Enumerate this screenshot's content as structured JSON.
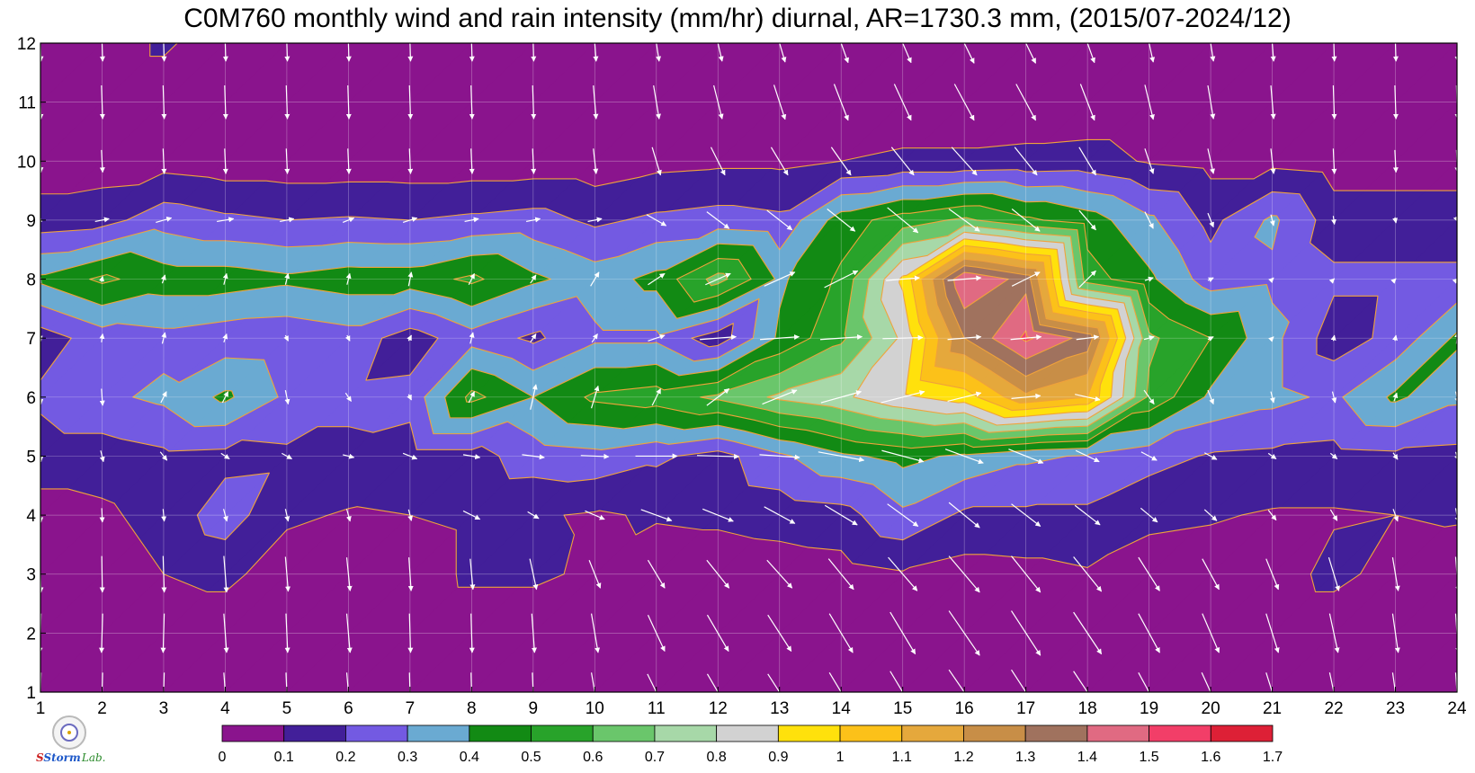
{
  "title": "C0M760 monthly wind and rain intensity (mm/hr) diurnal, AR=1730.3 mm, (2015/07-2024/12)",
  "logo": {
    "line1": "S",
    "line2": "Storm",
    "line3": "Lab."
  },
  "chart_data": {
    "type": "heatmap",
    "description_kind": "filled contour with wind vectors",
    "x": [
      1,
      2,
      3,
      4,
      5,
      6,
      7,
      8,
      9,
      10,
      11,
      12,
      13,
      14,
      15,
      16,
      17,
      18,
      19,
      20,
      21,
      22,
      23,
      24
    ],
    "y": [
      1,
      2,
      3,
      4,
      5,
      6,
      7,
      8,
      9,
      10,
      11,
      12
    ],
    "xlim": [
      1,
      24
    ],
    "ylim": [
      1,
      12
    ],
    "xticks": [
      "1",
      "2",
      "3",
      "4",
      "5",
      "6",
      "7",
      "8",
      "9",
      "10",
      "11",
      "12",
      "13",
      "14",
      "15",
      "16",
      "17",
      "18",
      "19",
      "20",
      "21",
      "22",
      "23",
      "24"
    ],
    "yticks": [
      "1",
      "2",
      "3",
      "4",
      "5",
      "6",
      "7",
      "8",
      "9",
      "10",
      "11",
      "12"
    ],
    "grid": true,
    "z_units": "mm/hr",
    "z": [
      [
        0.03,
        0.03,
        0.03,
        0.03,
        0.03,
        0.03,
        0.03,
        0.03,
        0.03,
        0.04,
        0.08,
        0.03,
        0.03,
        0.03,
        0.03,
        0.03,
        0.03,
        0.03,
        0.03,
        0.03,
        0.03,
        0.03,
        0.03,
        0.03
      ],
      [
        0.03,
        0.03,
        0.03,
        0.03,
        0.03,
        0.03,
        0.03,
        0.03,
        0.03,
        0.03,
        0.03,
        0.03,
        0.03,
        0.03,
        0.03,
        0.03,
        0.03,
        0.03,
        0.03,
        0.03,
        0.03,
        0.03,
        0.03,
        0.03
      ],
      [
        0.04,
        0.04,
        0.1,
        0.13,
        0.04,
        0.04,
        0.04,
        0.12,
        0.12,
        0.08,
        0.04,
        0.04,
        0.05,
        0.06,
        0.09,
        0.06,
        0.07,
        0.09,
        0.06,
        0.05,
        0.05,
        0.13,
        0.06,
        0.05
      ],
      [
        0.06,
        0.08,
        0.14,
        0.25,
        0.12,
        0.09,
        0.1,
        0.12,
        0.11,
        0.09,
        0.11,
        0.12,
        0.14,
        0.16,
        0.28,
        0.18,
        0.18,
        0.18,
        0.12,
        0.11,
        0.09,
        0.09,
        0.1,
        0.11
      ],
      [
        0.15,
        0.15,
        0.18,
        0.17,
        0.18,
        0.18,
        0.16,
        0.16,
        0.25,
        0.27,
        0.22,
        0.16,
        0.28,
        0.38,
        0.43,
        0.38,
        0.32,
        0.29,
        0.24,
        0.19,
        0.18,
        0.17,
        0.18,
        0.17
      ],
      [
        0.22,
        0.28,
        0.32,
        0.42,
        0.28,
        0.22,
        0.23,
        0.53,
        0.4,
        0.52,
        0.55,
        0.62,
        0.72,
        0.78,
        0.88,
        0.95,
        1.18,
        1.1,
        0.58,
        0.38,
        0.33,
        0.28,
        0.42,
        0.32
      ],
      [
        0.15,
        0.25,
        0.27,
        0.24,
        0.23,
        0.26,
        0.15,
        0.26,
        0.18,
        0.28,
        0.28,
        0.14,
        0.42,
        0.58,
        0.82,
        1.3,
        1.52,
        1.36,
        0.62,
        0.5,
        0.33,
        0.15,
        0.23,
        0.42
      ],
      [
        0.42,
        0.52,
        0.45,
        0.45,
        0.42,
        0.45,
        0.45,
        0.52,
        0.42,
        0.35,
        0.43,
        0.64,
        0.38,
        0.52,
        0.92,
        1.5,
        1.36,
        0.55,
        0.42,
        0.25,
        0.28,
        0.22,
        0.22,
        0.22
      ],
      [
        0.14,
        0.16,
        0.26,
        0.22,
        0.2,
        0.21,
        0.2,
        0.22,
        0.24,
        0.18,
        0.22,
        0.24,
        0.22,
        0.45,
        0.55,
        0.62,
        0.52,
        0.45,
        0.32,
        0.17,
        0.32,
        0.15,
        0.15,
        0.15
      ],
      [
        0.05,
        0.05,
        0.06,
        0.04,
        0.04,
        0.04,
        0.04,
        0.04,
        0.04,
        0.04,
        0.07,
        0.08,
        0.08,
        0.1,
        0.12,
        0.12,
        0.13,
        0.14,
        0.09,
        0.07,
        0.07,
        0.05,
        0.05,
        0.05
      ],
      [
        0.03,
        0.03,
        0.03,
        0.03,
        0.03,
        0.03,
        0.03,
        0.03,
        0.03,
        0.03,
        0.03,
        0.03,
        0.03,
        0.03,
        0.03,
        0.03,
        0.03,
        0.03,
        0.03,
        0.03,
        0.03,
        0.03,
        0.03,
        0.03
      ],
      [
        0.03,
        0.03,
        0.12,
        0.03,
        0.03,
        0.03,
        0.03,
        0.03,
        0.03,
        0.03,
        0.03,
        0.03,
        0.03,
        0.03,
        0.03,
        0.03,
        0.03,
        0.03,
        0.03,
        0.03,
        0.03,
        0.03,
        0.03,
        0.03
      ]
    ],
    "wind_u": [
      [
        -0.02,
        -0.02,
        -0.02,
        0.05,
        0.03,
        0.06,
        0.02,
        0.02,
        0.03,
        0.12,
        0.32,
        0.38,
        0.42,
        0.42,
        0.45,
        0.55,
        0.52,
        0.5,
        0.38,
        0.32,
        0.22,
        0.15,
        0.1,
        0.05
      ],
      [
        -0.02,
        -0.02,
        -0.02,
        0.05,
        0.03,
        0.06,
        0.02,
        0.02,
        0.05,
        0.12,
        0.3,
        0.38,
        0.42,
        0.42,
        0.45,
        0.55,
        0.52,
        0.5,
        0.38,
        0.3,
        0.22,
        0.15,
        0.1,
        0.05
      ],
      [
        0.02,
        0.01,
        0.02,
        0.05,
        0.05,
        0.06,
        0.04,
        0.05,
        0.12,
        0.2,
        0.3,
        0.4,
        0.45,
        0.45,
        0.52,
        0.55,
        0.52,
        0.5,
        0.38,
        0.3,
        0.22,
        0.18,
        0.1,
        0.05
      ],
      [
        0.02,
        0.01,
        0.02,
        0.06,
        0.05,
        0.06,
        0.05,
        0.3,
        0.2,
        0.35,
        0.55,
        0.55,
        0.55,
        0.58,
        0.55,
        0.55,
        0.52,
        0.45,
        0.3,
        0.22,
        0.14,
        0.12,
        0.08,
        0.05
      ],
      [
        0.02,
        0.05,
        0.12,
        0.15,
        0.18,
        0.2,
        0.25,
        0.3,
        0.4,
        0.5,
        0.75,
        0.75,
        0.72,
        0.82,
        0.75,
        0.68,
        0.62,
        0.42,
        0.28,
        0.22,
        0.14,
        0.12,
        0.08,
        0.05
      ],
      [
        0.02,
        0.02,
        0.1,
        0.1,
        0.05,
        0.1,
        0.05,
        0.1,
        0.1,
        0.12,
        0.15,
        0.4,
        0.62,
        0.72,
        0.78,
        0.6,
        0.52,
        0.45,
        0.18,
        0.1,
        0.05,
        0.05,
        0.05,
        0.05
      ],
      [
        0.02,
        0.02,
        0.05,
        0.05,
        0.05,
        0.05,
        0.05,
        0.05,
        0.1,
        0.1,
        0.3,
        0.65,
        0.7,
        0.75,
        0.72,
        0.6,
        0.55,
        0.4,
        0.18,
        0.1,
        0.05,
        0.02,
        0.02,
        0.02
      ],
      [
        0.02,
        0.02,
        0.05,
        0.05,
        0.05,
        0.05,
        0.05,
        0.1,
        0.1,
        0.15,
        0.3,
        0.45,
        0.55,
        0.6,
        0.6,
        0.6,
        0.5,
        0.3,
        0.15,
        0.1,
        0.05,
        0.02,
        0.02,
        0.02
      ],
      [
        0.05,
        0.25,
        0.28,
        0.3,
        0.25,
        0.2,
        0.25,
        0.25,
        0.25,
        0.25,
        0.35,
        0.4,
        0.45,
        0.5,
        0.55,
        0.55,
        0.5,
        0.3,
        0.15,
        0.1,
        0.05,
        0.02,
        0.02,
        0.02
      ],
      [
        0.02,
        0.02,
        0.02,
        0.02,
        0.02,
        0.02,
        0.02,
        0.02,
        0.02,
        0.05,
        0.15,
        0.25,
        0.3,
        0.35,
        0.4,
        0.45,
        0.4,
        0.3,
        0.15,
        0.1,
        0.05,
        0.02,
        0.02,
        0.02
      ],
      [
        0.02,
        0.02,
        0.02,
        0.02,
        0.02,
        0.02,
        0.02,
        0.02,
        0.02,
        0.05,
        0.1,
        0.15,
        0.2,
        0.25,
        0.3,
        0.35,
        0.35,
        0.25,
        0.15,
        0.1,
        0.05,
        0.02,
        0.02,
        0.02
      ],
      [
        0.02,
        0.02,
        0.02,
        0.02,
        0.02,
        0.02,
        0.02,
        0.02,
        0.02,
        0.05,
        0.1,
        0.15,
        0.2,
        0.25,
        0.3,
        0.35,
        0.35,
        0.25,
        0.15,
        0.1,
        0.05,
        0.02,
        0.02,
        0.02
      ]
    ],
    "wind_v": [
      [
        -0.7,
        -0.7,
        -0.7,
        -0.7,
        -0.7,
        -0.7,
        -0.7,
        -0.7,
        -0.7,
        -0.7,
        -0.65,
        -0.65,
        -0.65,
        -0.7,
        -0.75,
        -0.8,
        -0.8,
        -0.75,
        -0.7,
        -0.7,
        -0.7,
        -0.7,
        -0.7,
        -0.7
      ],
      [
        -0.7,
        -0.7,
        -0.7,
        -0.7,
        -0.7,
        -0.7,
        -0.7,
        -0.7,
        -0.7,
        -0.7,
        -0.65,
        -0.65,
        -0.65,
        -0.7,
        -0.75,
        -0.8,
        -0.8,
        -0.75,
        -0.7,
        -0.7,
        -0.7,
        -0.7,
        -0.7,
        -0.7
      ],
      [
        -0.65,
        -0.65,
        -0.65,
        -0.65,
        -0.62,
        -0.6,
        -0.6,
        -0.55,
        -0.55,
        -0.5,
        -0.5,
        -0.5,
        -0.5,
        -0.55,
        -0.6,
        -0.65,
        -0.65,
        -0.62,
        -0.6,
        -0.55,
        -0.55,
        -0.6,
        -0.6,
        -0.62
      ],
      [
        -0.25,
        -0.25,
        -0.22,
        -0.22,
        -0.22,
        -0.22,
        -0.2,
        -0.15,
        -0.12,
        -0.15,
        -0.2,
        -0.22,
        -0.3,
        -0.35,
        -0.4,
        -0.45,
        -0.4,
        -0.35,
        -0.25,
        -0.2,
        -0.18,
        -0.2,
        -0.22,
        -0.25
      ],
      [
        -0.2,
        -0.2,
        -0.15,
        -0.1,
        -0.1,
        -0.05,
        -0.1,
        -0.05,
        -0.05,
        -0.02,
        0.0,
        -0.02,
        -0.05,
        -0.15,
        -0.2,
        -0.25,
        -0.25,
        -0.2,
        -0.15,
        -0.12,
        -0.1,
        -0.1,
        -0.12,
        -0.15
      ],
      [
        -0.25,
        -0.3,
        0.2,
        0.2,
        -0.25,
        -0.15,
        -0.1,
        0.2,
        0.45,
        0.4,
        0.3,
        0.3,
        0.25,
        0.2,
        0.2,
        0.15,
        0.05,
        -0.1,
        -0.25,
        -0.25,
        -0.2,
        -0.2,
        0.15,
        -0.2
      ],
      [
        -0.1,
        0.15,
        0.2,
        0.15,
        -0.1,
        -0.1,
        0.1,
        0.2,
        0.15,
        0.15,
        0.1,
        0.05,
        0.05,
        0.05,
        0.02,
        0.05,
        0.05,
        0.05,
        0.05,
        0.05,
        0.05,
        0.1,
        0.1,
        0.2
      ],
      [
        0.05,
        0.1,
        0.15,
        0.2,
        0.2,
        0.2,
        0.25,
        0.2,
        0.15,
        0.25,
        0.2,
        0.2,
        0.25,
        0.3,
        0.05,
        0.05,
        0.25,
        0.3,
        0.05,
        0.05,
        0.05,
        0.02,
        0.02,
        0.02
      ],
      [
        -0.05,
        0.05,
        0.08,
        0.05,
        0.05,
        0.08,
        0.08,
        0.05,
        0.05,
        0.05,
        -0.2,
        -0.3,
        -0.35,
        -0.4,
        -0.45,
        -0.4,
        -0.4,
        -0.35,
        -0.3,
        -0.25,
        -0.2,
        -0.15,
        -0.1,
        -0.05
      ],
      [
        -0.4,
        -0.4,
        -0.45,
        -0.45,
        -0.45,
        -0.45,
        -0.45,
        -0.45,
        -0.45,
        -0.45,
        -0.5,
        -0.5,
        -0.5,
        -0.5,
        -0.5,
        -0.5,
        -0.5,
        -0.5,
        -0.45,
        -0.45,
        -0.45,
        -0.45,
        -0.4,
        -0.4
      ],
      [
        -0.6,
        -0.6,
        -0.6,
        -0.6,
        -0.6,
        -0.6,
        -0.6,
        -0.6,
        -0.6,
        -0.6,
        -0.6,
        -0.6,
        -0.62,
        -0.65,
        -0.65,
        -0.65,
        -0.65,
        -0.65,
        -0.62,
        -0.6,
        -0.6,
        -0.6,
        -0.6,
        -0.6
      ],
      [
        -0.65,
        -0.65,
        -0.65,
        -0.65,
        -0.65,
        -0.65,
        -0.65,
        -0.65,
        -0.65,
        -0.65,
        -0.65,
        -0.65,
        -0.68,
        -0.7,
        -0.7,
        -0.72,
        -0.72,
        -0.7,
        -0.68,
        -0.65,
        -0.65,
        -0.65,
        -0.65,
        -0.65
      ]
    ],
    "colorbar": {
      "levels": [
        0,
        0.1,
        0.2,
        0.3,
        0.4,
        0.5,
        0.6,
        0.7,
        0.8,
        0.9,
        1,
        1.1,
        1.2,
        1.3,
        1.4,
        1.5,
        1.6,
        1.7
      ],
      "tick_labels": [
        "0",
        "0.1",
        "0.2",
        "0.3",
        "0.4",
        "0.5",
        "0.6",
        "0.7",
        "0.8",
        "0.9",
        "1",
        "1.1",
        "1.2",
        "1.3",
        "1.4",
        "1.5",
        "1.6",
        "1.7"
      ],
      "colors": [
        "#8a148d",
        "#421f99",
        "#735ae2",
        "#6aaad2",
        "#128a14",
        "#28a32a",
        "#6ac66b",
        "#a7d8a8",
        "#d2d2d2",
        "#ffe10c",
        "#fcc119",
        "#e5a83c",
        "#c88e47",
        "#a0725e",
        "#e06a82",
        "#f23e68",
        "#dd2036"
      ]
    },
    "contour_line_color": "#f0a23a",
    "vector_color": "#ffffff"
  }
}
